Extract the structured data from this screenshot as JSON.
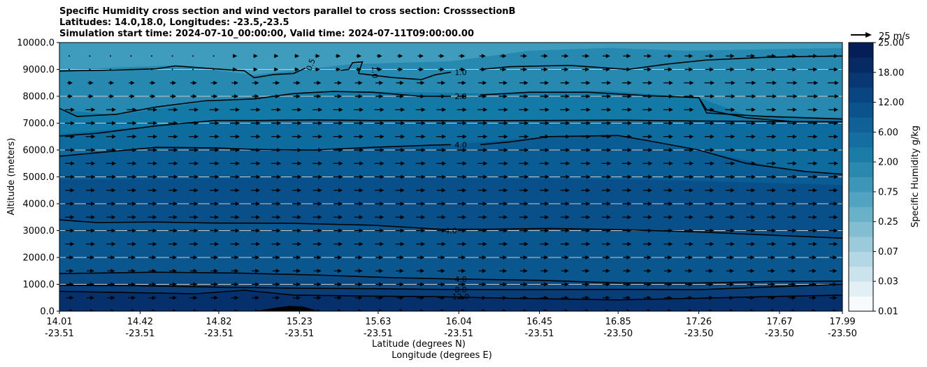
{
  "chart_data": {
    "type": "contour",
    "title_lines": [
      "Specific Humidity cross section and wind vectors parallel to cross section: CrosssectionB",
      "Latitudes: 14.0,18.0, Longitudes: -23.5,-23.5",
      "Simulation start time: 2024-07-10_00:00:00, Valid time: 2024-07-11T09:00:00.00"
    ],
    "ylabel": "Altitude (meters)",
    "xlabel_lat": "Latitude (degrees N)",
    "xlabel_lon": "Longitude (degrees E)",
    "ylim": [
      0,
      10000
    ],
    "yticks": [
      "0.0",
      "1000.0",
      "2000.0",
      "3000.0",
      "4000.0",
      "5000.0",
      "6000.0",
      "7000.0",
      "8000.0",
      "9000.0",
      "10000.0"
    ],
    "xticks_lat": [
      "14.01",
      "14.42",
      "14.82",
      "15.23",
      "15.63",
      "16.04",
      "16.45",
      "16.85",
      "17.26",
      "17.67",
      "17.99"
    ],
    "xticks_lon": [
      "-23.51",
      "-23.51",
      "-23.51",
      "-23.51",
      "-23.51",
      "-23.51",
      "-23.51",
      "-23.50",
      "-23.50",
      "-23.50",
      "-23.50"
    ],
    "colorbar": {
      "label": "Specific Humidity g/kg",
      "tick_labels": [
        "0.01",
        "0.03",
        "0.07",
        "0.25",
        "0.75",
        "2.00",
        "6.00",
        "12.00",
        "18.00",
        "25.00"
      ],
      "colors": [
        "#f7fbfd",
        "#e2eff4",
        "#cbe3ec",
        "#b3d7e4",
        "#9bcadb",
        "#82bdd2",
        "#69b0c9",
        "#52a3c1",
        "#3d96b8",
        "#2b89b0",
        "#1c7ca8",
        "#146fa0",
        "#0f6197",
        "#0b538c",
        "#094580",
        "#083773",
        "#072a65",
        "#061e57"
      ]
    },
    "quiver_key": {
      "label": "25 m/s",
      "speed": 25
    },
    "contour_labels": [
      {
        "text": "0.5",
        "lat": 15.3,
        "alt": 9250
      },
      {
        "text": "1.0",
        "lat": 15.6,
        "alt": 9000
      },
      {
        "text": "1.0",
        "lat": 16.05,
        "alt": 8900
      },
      {
        "text": "2.0",
        "lat": 16.05,
        "alt": 8000
      },
      {
        "text": "4.0",
        "lat": 16.05,
        "alt": 6200
      },
      {
        "text": "4.0",
        "lat": 16.0,
        "alt": 3000
      },
      {
        "text": "4.0",
        "lat": 16.05,
        "alt": 1200
      },
      {
        "text": "8.0",
        "lat": 16.05,
        "alt": 800
      },
      {
        "text": "12.0",
        "lat": 16.05,
        "alt": 550
      }
    ],
    "contours": [
      {
        "name": "q-0.5",
        "points": [
          [
            14.01,
            8940
          ],
          [
            14.3,
            8980
          ],
          [
            14.5,
            9020
          ],
          [
            14.6,
            9130
          ],
          [
            14.8,
            9020
          ],
          [
            14.95,
            8950
          ],
          [
            15.0,
            8690
          ],
          [
            15.1,
            8810
          ],
          [
            15.2,
            8850
          ],
          [
            15.26,
            9050
          ]
        ]
      },
      {
        "name": "q-1.0-upper",
        "points": [
          [
            15.44,
            8970
          ],
          [
            15.48,
            9000
          ],
          [
            15.5,
            9250
          ],
          [
            15.55,
            9280
          ],
          [
            15.53,
            8850
          ]
        ]
      },
      {
        "name": "q-1.0",
        "points": [
          [
            15.53,
            8850
          ],
          [
            15.7,
            8700
          ],
          [
            15.85,
            8620
          ],
          [
            15.92,
            8800
          ],
          [
            16.0,
            8900
          ]
        ]
      },
      {
        "name": "q-1.0-right",
        "points": [
          [
            16.15,
            9000
          ],
          [
            16.3,
            9100
          ],
          [
            16.6,
            9150
          ],
          [
            16.9,
            9000
          ],
          [
            17.1,
            9200
          ],
          [
            17.3,
            9350
          ],
          [
            17.6,
            9450
          ],
          [
            17.8,
            9480
          ],
          [
            17.99,
            9500
          ]
        ]
      },
      {
        "name": "q-2.0",
        "points": [
          [
            14.01,
            7550
          ],
          [
            14.1,
            7250
          ],
          [
            14.3,
            7330
          ],
          [
            14.5,
            7600
          ],
          [
            14.75,
            7830
          ],
          [
            15.0,
            7900
          ],
          [
            15.2,
            8100
          ],
          [
            15.4,
            8180
          ],
          [
            15.6,
            8150
          ],
          [
            15.85,
            8000
          ],
          [
            16.0,
            8000
          ]
        ]
      },
      {
        "name": "q-2.0-right",
        "points": [
          [
            16.15,
            8050
          ],
          [
            16.4,
            8150
          ],
          [
            16.7,
            8150
          ],
          [
            17.0,
            8020
          ],
          [
            17.26,
            7950
          ],
          [
            17.3,
            7380
          ],
          [
            17.6,
            7250
          ],
          [
            17.99,
            7150
          ]
        ]
      },
      {
        "name": "q-2.0-lower",
        "points": [
          [
            17.26,
            7950
          ],
          [
            17.3,
            7500
          ],
          [
            17.5,
            7200
          ],
          [
            17.75,
            7050
          ],
          [
            17.99,
            7050
          ]
        ]
      },
      {
        "name": "q-4.0-upper",
        "points": [
          [
            14.01,
            6520
          ],
          [
            14.2,
            6620
          ],
          [
            14.5,
            6900
          ],
          [
            14.8,
            7100
          ],
          [
            15.0,
            7100
          ],
          [
            15.3,
            7120
          ],
          [
            15.6,
            7100
          ],
          [
            16.0,
            7090
          ],
          [
            16.45,
            7100
          ],
          [
            16.85,
            7110
          ],
          [
            17.26,
            7080
          ],
          [
            17.99,
            7050
          ]
        ]
      },
      {
        "name": "q-4.0-mid",
        "points": [
          [
            14.01,
            5770
          ],
          [
            14.2,
            5900
          ],
          [
            14.5,
            6100
          ],
          [
            14.8,
            6080
          ],
          [
            15.0,
            6020
          ],
          [
            15.3,
            6000
          ],
          [
            15.6,
            6100
          ],
          [
            15.9,
            6180
          ],
          [
            16.0,
            6200
          ]
        ]
      },
      {
        "name": "q-4.0-mid-right",
        "points": [
          [
            16.15,
            6200
          ],
          [
            16.3,
            6300
          ],
          [
            16.5,
            6500
          ],
          [
            16.85,
            6540
          ],
          [
            17.0,
            6350
          ],
          [
            17.26,
            6000
          ],
          [
            17.5,
            5500
          ],
          [
            17.8,
            5200
          ],
          [
            17.99,
            5100
          ]
        ]
      },
      {
        "name": "q-4.0-lower",
        "points": [
          [
            14.01,
            3400
          ],
          [
            14.2,
            3300
          ],
          [
            14.5,
            3320
          ],
          [
            14.8,
            3280
          ],
          [
            15.2,
            3270
          ],
          [
            15.6,
            3200
          ],
          [
            15.95,
            3050
          ],
          [
            16.2,
            3050
          ],
          [
            16.5,
            3080
          ],
          [
            16.85,
            3040
          ],
          [
            17.26,
            2950
          ],
          [
            17.6,
            2840
          ],
          [
            17.99,
            2720
          ]
        ]
      },
      {
        "name": "q-4.0-bottom",
        "points": [
          [
            14.01,
            1400
          ],
          [
            14.5,
            1450
          ],
          [
            14.9,
            1420
          ],
          [
            15.3,
            1350
          ],
          [
            15.7,
            1250
          ],
          [
            16.0,
            1200
          ],
          [
            16.45,
            1150
          ],
          [
            16.85,
            1050
          ],
          [
            17.26,
            1050
          ],
          [
            17.6,
            1100
          ],
          [
            17.99,
            1120
          ]
        ]
      },
      {
        "name": "q-8.0",
        "points": [
          [
            14.01,
            960
          ],
          [
            14.4,
            950
          ],
          [
            14.8,
            900
          ],
          [
            15.2,
            860
          ],
          [
            15.6,
            840
          ],
          [
            15.95,
            810
          ],
          [
            16.3,
            800
          ],
          [
            16.85,
            810
          ],
          [
            17.26,
            800
          ],
          [
            17.6,
            900
          ],
          [
            17.99,
            1000
          ]
        ]
      },
      {
        "name": "q-12.0",
        "points": [
          [
            14.01,
            740
          ],
          [
            14.3,
            700
          ],
          [
            14.7,
            650
          ],
          [
            14.95,
            780
          ],
          [
            15.2,
            600
          ],
          [
            15.6,
            560
          ],
          [
            15.95,
            540
          ],
          [
            16.3,
            480
          ],
          [
            16.85,
            420
          ],
          [
            17.26,
            480
          ],
          [
            17.6,
            540
          ],
          [
            17.99,
            600
          ]
        ]
      }
    ],
    "fill_bands": [
      {
        "upper": [
          [
            14.01,
            10000
          ],
          [
            17.99,
            10000
          ]
        ],
        "color": "#3f9cbd"
      },
      {
        "upper": [
          [
            14.01,
            9000
          ],
          [
            14.6,
            9150
          ],
          [
            15.0,
            8800
          ],
          [
            15.5,
            9200
          ],
          [
            16.0,
            9300
          ],
          [
            16.4,
            9700
          ],
          [
            16.8,
            9800
          ],
          [
            17.2,
            9700
          ],
          [
            17.99,
            9800
          ]
        ],
        "color": "#2788b0"
      },
      {
        "upper": [
          [
            14.01,
            7500
          ],
          [
            14.3,
            7300
          ],
          [
            14.8,
            7850
          ],
          [
            15.4,
            8200
          ],
          [
            16.2,
            8100
          ],
          [
            16.8,
            8200
          ],
          [
            17.26,
            7950
          ],
          [
            17.5,
            7300
          ],
          [
            17.99,
            7200
          ]
        ],
        "color": "#137aa7"
      },
      {
        "upper": [
          [
            14.01,
            6600
          ],
          [
            14.5,
            6900
          ],
          [
            15.0,
            7100
          ],
          [
            16.0,
            7100
          ],
          [
            17.26,
            7050
          ],
          [
            17.99,
            7050
          ]
        ],
        "color": "#0d6b9e"
      },
      {
        "upper": [
          [
            14.01,
            5800
          ],
          [
            14.6,
            6100
          ],
          [
            15.3,
            6000
          ],
          [
            16.0,
            6200
          ],
          [
            16.5,
            6500
          ],
          [
            16.85,
            6550
          ],
          [
            17.26,
            6000
          ],
          [
            17.7,
            5300
          ],
          [
            17.99,
            5100
          ]
        ],
        "color": "#0a5c94"
      },
      {
        "upper": [
          [
            14.01,
            4900
          ],
          [
            15.0,
            4950
          ],
          [
            16.0,
            4950
          ],
          [
            17.0,
            4900
          ],
          [
            17.99,
            4700
          ]
        ],
        "color": "#09508a"
      },
      {
        "upper": [
          [
            14.01,
            3400
          ],
          [
            14.8,
            3280
          ],
          [
            15.6,
            3200
          ],
          [
            16.2,
            3050
          ],
          [
            17.26,
            2950
          ],
          [
            17.99,
            2720
          ]
        ],
        "color": "#0a5790"
      },
      {
        "upper": [
          [
            14.01,
            1400
          ],
          [
            14.9,
            1420
          ],
          [
            15.7,
            1250
          ],
          [
            16.45,
            1150
          ],
          [
            17.26,
            1050
          ],
          [
            17.99,
            1120
          ]
        ],
        "color": "#0a4b86"
      },
      {
        "upper": [
          [
            14.01,
            960
          ],
          [
            14.8,
            900
          ],
          [
            15.6,
            840
          ],
          [
            16.3,
            800
          ],
          [
            17.26,
            800
          ],
          [
            17.99,
            1000
          ]
        ],
        "color": "#083d78"
      },
      {
        "upper": [
          [
            14.01,
            740
          ],
          [
            14.7,
            650
          ],
          [
            14.95,
            780
          ],
          [
            15.2,
            600
          ],
          [
            15.95,
            540
          ],
          [
            16.85,
            420
          ],
          [
            17.99,
            600
          ]
        ],
        "color": "#06306b"
      }
    ],
    "terrain": {
      "points": [
        [
          15.0,
          0
        ],
        [
          15.1,
          120
        ],
        [
          15.18,
          200
        ],
        [
          15.25,
          170
        ],
        [
          15.33,
          0
        ]
      ],
      "color": "#000000"
    },
    "wind": {
      "lat_count": 38,
      "levels": [
        0,
        500,
        1000,
        1500,
        2000,
        2500,
        3000,
        3500,
        4000,
        4500,
        5000,
        5500,
        6000,
        6500,
        7000,
        7500,
        8000,
        8500,
        9000,
        9500
      ],
      "note": "u component parallel to section"
    }
  }
}
